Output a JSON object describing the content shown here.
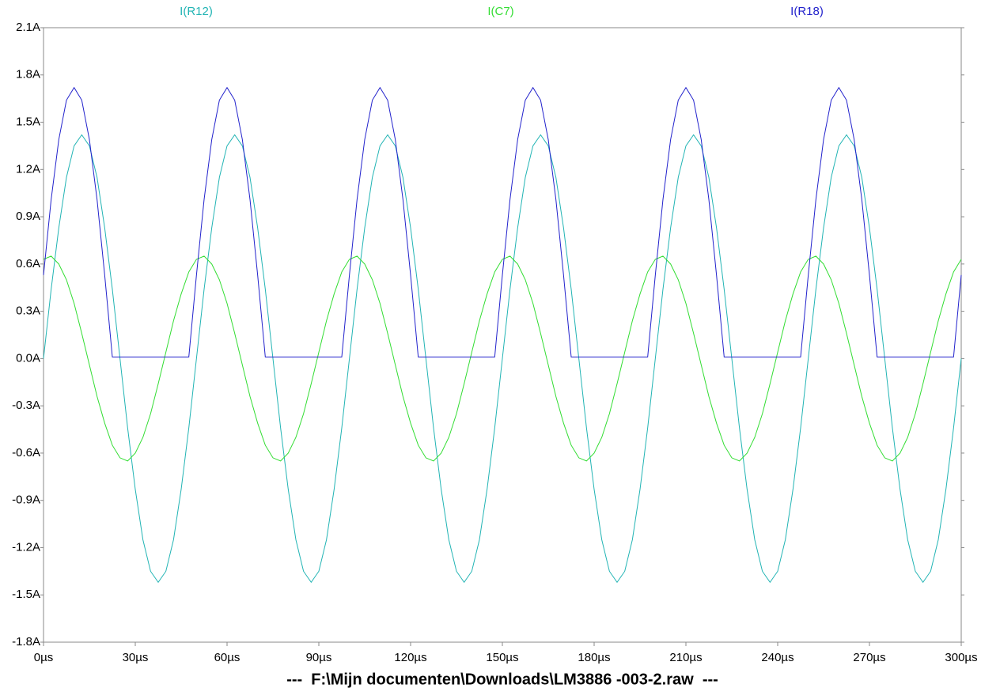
{
  "chart_data": {
    "type": "line",
    "title": "---  F:\\Mijn documenten\\Downloads\\LM3886 -003-2.raw  ---",
    "x": [
      0,
      2.5,
      5,
      7.5,
      10,
      12.5,
      15,
      17.5,
      20,
      22.5,
      25,
      27.5,
      30,
      32.5,
      35,
      37.5,
      40,
      42.5,
      45,
      47.5,
      50,
      52.5,
      55,
      57.5,
      60,
      62.5,
      65,
      67.5,
      70,
      72.5,
      75,
      77.5,
      80,
      82.5,
      85,
      87.5,
      90,
      92.5,
      95,
      97.5,
      100,
      102.5,
      105,
      107.5,
      110,
      112.5,
      115,
      117.5,
      120,
      122.5,
      125,
      127.5,
      130,
      132.5,
      135,
      137.5,
      140,
      142.5,
      145,
      147.5,
      150,
      152.5,
      155,
      157.5,
      160,
      162.5,
      165,
      167.5,
      170,
      172.5,
      175,
      177.5,
      180,
      182.5,
      185,
      187.5,
      190,
      192.5,
      195,
      197.5,
      200,
      202.5,
      205,
      207.5,
      210,
      212.5,
      215,
      217.5,
      220,
      222.5,
      225,
      227.5,
      230,
      232.5,
      235,
      237.5,
      240,
      242.5,
      245,
      247.5,
      250,
      252.5,
      255,
      257.5,
      260,
      262.5,
      265,
      267.5,
      270,
      272.5,
      275,
      277.5,
      280,
      282.5,
      285,
      287.5,
      290,
      292.5,
      295,
      297.5,
      300
    ],
    "series": [
      {
        "name": "I(R12)",
        "color": "#22b4b4",
        "values": [
          0,
          0.44,
          0.83,
          1.15,
          1.35,
          1.42,
          1.35,
          1.15,
          0.83,
          0.44,
          0,
          -0.44,
          -0.83,
          -1.15,
          -1.35,
          -1.42,
          -1.35,
          -1.15,
          -0.83,
          -0.44,
          0,
          0.44,
          0.83,
          1.15,
          1.35,
          1.42,
          1.35,
          1.15,
          0.83,
          0.44,
          0,
          -0.44,
          -0.83,
          -1.15,
          -1.35,
          -1.42,
          -1.35,
          -1.15,
          -0.83,
          -0.44,
          0,
          0.44,
          0.83,
          1.15,
          1.35,
          1.42,
          1.35,
          1.15,
          0.83,
          0.44,
          0,
          -0.44,
          -0.83,
          -1.15,
          -1.35,
          -1.42,
          -1.35,
          -1.15,
          -0.83,
          -0.44,
          0,
          0.44,
          0.83,
          1.15,
          1.35,
          1.42,
          1.35,
          1.15,
          0.83,
          0.44,
          0,
          -0.44,
          -0.83,
          -1.15,
          -1.35,
          -1.42,
          -1.35,
          -1.15,
          -0.83,
          -0.44,
          0,
          0.44,
          0.83,
          1.15,
          1.35,
          1.42,
          1.35,
          1.15,
          0.83,
          0.44,
          0,
          -0.44,
          -0.83,
          -1.15,
          -1.35,
          -1.42,
          -1.35,
          -1.15,
          -0.83,
          -0.44,
          0,
          0.44,
          0.83,
          1.15,
          1.35,
          1.42,
          1.35,
          1.15,
          0.83,
          0.44,
          0,
          -0.44,
          -0.83,
          -1.15,
          -1.35,
          -1.42,
          -1.35,
          -1.15,
          -0.83,
          -0.44,
          0
        ]
      },
      {
        "name": "I(C7)",
        "color": "#33dd33",
        "values": [
          0.63,
          0.65,
          0.6,
          0.5,
          0.35,
          0.16,
          -0.04,
          -0.24,
          -0.41,
          -0.55,
          -0.63,
          -0.65,
          -0.6,
          -0.5,
          -0.35,
          -0.16,
          0.04,
          0.24,
          0.41,
          0.55,
          0.63,
          0.65,
          0.6,
          0.5,
          0.35,
          0.16,
          -0.04,
          -0.24,
          -0.41,
          -0.55,
          -0.63,
          -0.65,
          -0.6,
          -0.5,
          -0.35,
          -0.16,
          0.04,
          0.24,
          0.41,
          0.55,
          0.63,
          0.65,
          0.6,
          0.5,
          0.35,
          0.16,
          -0.04,
          -0.24,
          -0.41,
          -0.55,
          -0.63,
          -0.65,
          -0.6,
          -0.5,
          -0.35,
          -0.16,
          0.04,
          0.24,
          0.41,
          0.55,
          0.63,
          0.65,
          0.6,
          0.5,
          0.35,
          0.16,
          -0.04,
          -0.24,
          -0.41,
          -0.55,
          -0.63,
          -0.65,
          -0.6,
          -0.5,
          -0.35,
          -0.16,
          0.04,
          0.24,
          0.41,
          0.55,
          0.63,
          0.65,
          0.6,
          0.5,
          0.35,
          0.16,
          -0.04,
          -0.24,
          -0.41,
          -0.55,
          -0.63,
          -0.65,
          -0.6,
          -0.5,
          -0.35,
          -0.16,
          0.04,
          0.24,
          0.41,
          0.55,
          0.63,
          0.65,
          0.6,
          0.5,
          0.35,
          0.16,
          -0.04,
          -0.24,
          -0.41,
          -0.55,
          -0.63,
          -0.65,
          -0.6,
          -0.5,
          -0.35,
          -0.16,
          0.04,
          0.24,
          0.41,
          0.55,
          0.63
        ]
      },
      {
        "name": "I(R18)",
        "color": "#2222cc",
        "values": [
          0.53,
          1.01,
          1.39,
          1.64,
          1.72,
          1.64,
          1.39,
          1.01,
          0.53,
          0.01,
          0.01,
          0.01,
          0.01,
          0.01,
          0.01,
          0.01,
          0.01,
          0.01,
          0.01,
          0.01,
          0.53,
          1.01,
          1.39,
          1.64,
          1.72,
          1.64,
          1.39,
          1.01,
          0.53,
          0.01,
          0.01,
          0.01,
          0.01,
          0.01,
          0.01,
          0.01,
          0.01,
          0.01,
          0.01,
          0.01,
          0.53,
          1.01,
          1.39,
          1.64,
          1.72,
          1.64,
          1.39,
          1.01,
          0.53,
          0.01,
          0.01,
          0.01,
          0.01,
          0.01,
          0.01,
          0.01,
          0.01,
          0.01,
          0.01,
          0.01,
          0.53,
          1.01,
          1.39,
          1.64,
          1.72,
          1.64,
          1.39,
          1.01,
          0.53,
          0.01,
          0.01,
          0.01,
          0.01,
          0.01,
          0.01,
          0.01,
          0.01,
          0.01,
          0.01,
          0.01,
          0.53,
          1.01,
          1.39,
          1.64,
          1.72,
          1.64,
          1.39,
          1.01,
          0.53,
          0.01,
          0.01,
          0.01,
          0.01,
          0.01,
          0.01,
          0.01,
          0.01,
          0.01,
          0.01,
          0.01,
          0.53,
          1.01,
          1.39,
          1.64,
          1.72,
          1.64,
          1.39,
          1.01,
          0.53,
          0.01,
          0.01,
          0.01,
          0.01,
          0.01,
          0.01,
          0.01,
          0.01,
          0.01,
          0.01,
          0.01,
          0.53
        ]
      }
    ],
    "xlim": [
      0,
      300
    ],
    "xticks": [
      {
        "value": 0,
        "label": "0µs"
      },
      {
        "value": 30,
        "label": "30µs"
      },
      {
        "value": 60,
        "label": "60µs"
      },
      {
        "value": 90,
        "label": "90µs"
      },
      {
        "value": 120,
        "label": "120µs"
      },
      {
        "value": 150,
        "label": "150µs"
      },
      {
        "value": 180,
        "label": "180µs"
      },
      {
        "value": 210,
        "label": "210µs"
      },
      {
        "value": 240,
        "label": "240µs"
      },
      {
        "value": 270,
        "label": "270µs"
      },
      {
        "value": 300,
        "label": "300µs"
      }
    ],
    "ylim": [
      -1.8,
      2.1
    ],
    "yticks": [
      {
        "value": 2.1,
        "label": "2.1A"
      },
      {
        "value": 1.8,
        "label": "1.8A"
      },
      {
        "value": 1.5,
        "label": "1.5A"
      },
      {
        "value": 1.2,
        "label": "1.2A"
      },
      {
        "value": 0.9,
        "label": "0.9A"
      },
      {
        "value": 0.6,
        "label": "0.6A"
      },
      {
        "value": 0.3,
        "label": "0.3A"
      },
      {
        "value": 0,
        "label": "0.0A"
      },
      {
        "value": -0.3,
        "label": "-0.3A"
      },
      {
        "value": -0.6,
        "label": "-0.6A"
      },
      {
        "value": -0.9,
        "label": "-0.9A"
      },
      {
        "value": -1.2,
        "label": "-1.2A"
      },
      {
        "value": -1.5,
        "label": "-1.5A"
      },
      {
        "value": -1.8,
        "label": "-1.8A"
      }
    ],
    "grid": false
  }
}
